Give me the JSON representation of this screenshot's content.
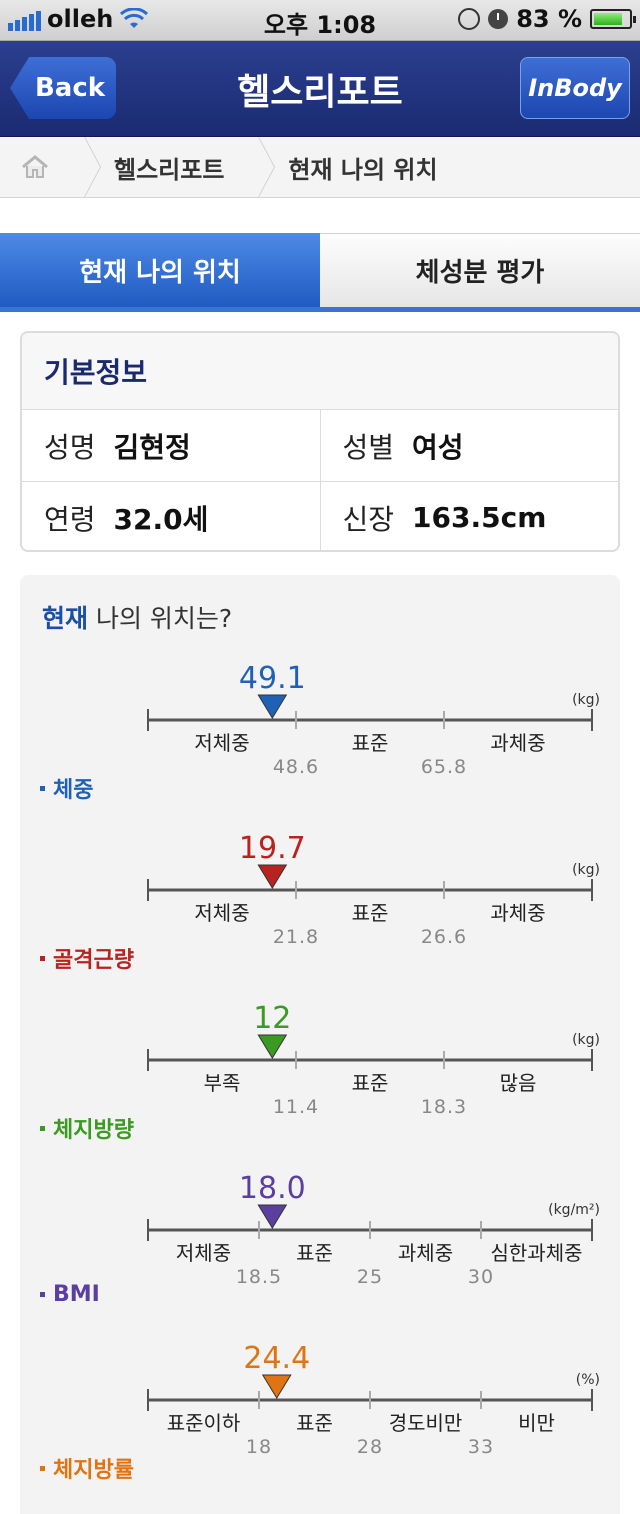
{
  "status_bar": {
    "carrier": "olleh",
    "time": "오후 1:08",
    "battery": "83 %",
    "battery_level": 0.83
  },
  "nav": {
    "back_label": "Back",
    "title": "헬스리포트",
    "brand_label": "InBody"
  },
  "breadcrumb": [
    "헬스리포트",
    "현재 나의 위치"
  ],
  "tabs": [
    {
      "label": "현재 나의 위치",
      "active": true
    },
    {
      "label": "체성분 평가",
      "active": false
    }
  ],
  "basic_info": {
    "title": "기본정보",
    "rows": [
      [
        {
          "key": "성명",
          "value": "김현정"
        },
        {
          "key": "성별",
          "value": "여성"
        }
      ],
      [
        {
          "key": "연령",
          "value": "32.0세"
        },
        {
          "key": "신장",
          "value": "163.5cm"
        }
      ]
    ]
  },
  "position": {
    "title_highlight": "현재",
    "title_rest": " 나의 위치는?",
    "metrics": [
      {
        "label": "체중",
        "color": "#1f62b5",
        "value": "49.1",
        "unit": "(kg)",
        "zones": [
          "저체중",
          "표준",
          "과체중"
        ],
        "thresholds": [
          "48.6",
          "65.8"
        ],
        "marker_pos": 0.28
      },
      {
        "label": "골격근량",
        "color": "#b8231f",
        "value": "19.7",
        "unit": "(kg)",
        "zones": [
          "저체중",
          "표준",
          "과체중"
        ],
        "thresholds": [
          "21.8",
          "26.6"
        ],
        "marker_pos": 0.28
      },
      {
        "label": "체지방량",
        "color": "#3b9a22",
        "value": "12",
        "unit": "(kg)",
        "zones": [
          "부족",
          "표준",
          "많음"
        ],
        "thresholds": [
          "11.4",
          "18.3"
        ],
        "marker_pos": 0.28
      },
      {
        "label": "BMI",
        "color": "#5a3fa0",
        "value": "18.0",
        "unit": "(kg/m²)",
        "zones": [
          "저체중",
          "표준",
          "과체중",
          "심한과체중"
        ],
        "thresholds": [
          "18.5",
          "25",
          "30"
        ],
        "marker_pos": 0.28
      },
      {
        "label": "체지방률",
        "color": "#e07412",
        "value": "24.4",
        "unit": "(%)",
        "zones": [
          "표준이하",
          "표준",
          "경도비만",
          "비만"
        ],
        "thresholds": [
          "18",
          "28",
          "33"
        ],
        "marker_pos": 0.29
      }
    ]
  }
}
